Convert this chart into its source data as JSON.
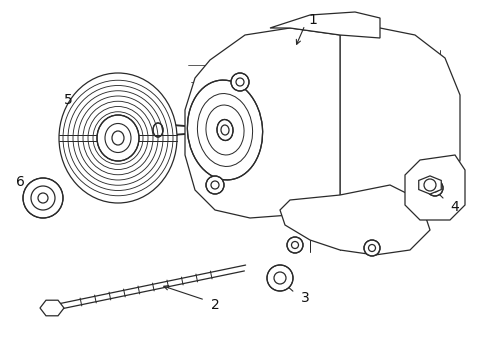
{
  "background_color": "#ffffff",
  "line_color": "#2a2a2a",
  "line_width": 0.9,
  "label_fontsize": 10,
  "label_color": "#111111",
  "figsize": [
    4.89,
    3.6
  ],
  "dpi": 100,
  "alternator": {
    "body_color": "#ffffff",
    "fin_color": "#cccccc"
  }
}
